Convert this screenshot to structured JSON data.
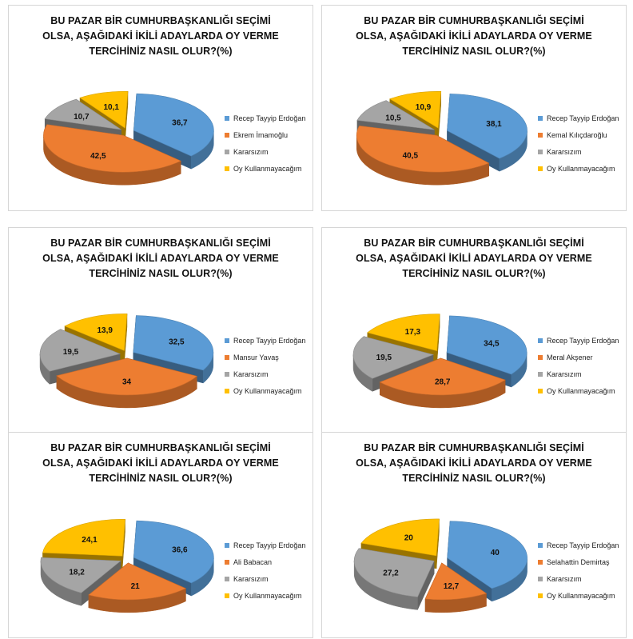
{
  "colors": {
    "erdogan": "#5b9bd5",
    "candidate": "#ed7d31",
    "undecided": "#a5a5a5",
    "novote": "#ffc000"
  },
  "chart_data": [
    {
      "type": "pie",
      "title": [
        "BU PAZAR BİR CUMHURBAŞKANLIĞI SEÇİMİ",
        "OLSA, AŞAĞIDAKİ İKİLİ ADAYLARDA OY VERME",
        "TERCİHİNİZ NASIL OLUR?(%)"
      ],
      "labels": [
        "Recep Tayyip Erdoğan",
        "Ekrem İmamoğlu",
        "Kararsızım",
        "Oy Kullanmayacağım"
      ],
      "values": [
        36.7,
        42.5,
        10.7,
        10.1
      ],
      "value_labels": [
        "36,7",
        "42,5",
        "10,7",
        "10,1"
      ],
      "legend": "right"
    },
    {
      "type": "pie",
      "title": [
        "BU PAZAR BİR CUMHURBAŞKANLIĞI SEÇİMİ",
        "OLSA, AŞAĞIDAKİ İKİLİ ADAYLARDA OY VERME",
        "TERCİHİNİZ NASIL OLUR?(%)"
      ],
      "labels": [
        "Recep Tayyip Erdoğan",
        "Kemal Kılıçdaroğlu",
        "Kararsızım",
        "Oy Kullanmayacağım"
      ],
      "values": [
        38.1,
        40.5,
        10.5,
        10.9
      ],
      "value_labels": [
        "38,1",
        "40,5",
        "10,5",
        "10,9"
      ],
      "legend": "right"
    },
    {
      "type": "pie",
      "title": [
        "BU PAZAR BİR CUMHURBAŞKANLIĞI SEÇİMİ",
        "OLSA, AŞAĞIDAKİ İKİLİ ADAYLARDA OY VERME",
        "TERCİHİNİZ NASIL OLUR?(%)"
      ],
      "labels": [
        "Recep Tayyip Erdoğan",
        "Mansur Yavaş",
        "Kararsızım",
        "Oy Kullanmayacağım"
      ],
      "values": [
        32.5,
        34,
        19.5,
        13.9
      ],
      "value_labels": [
        "32,5",
        "34",
        "19,5",
        "13,9"
      ],
      "legend": "right"
    },
    {
      "type": "pie",
      "title": [
        "BU PAZAR BİR CUMHURBAŞKANLIĞI SEÇİMİ",
        "OLSA, AŞAĞIDAKİ İKİLİ ADAYLARDA OY VERME",
        "TERCİHİNİZ NASIL OLUR?(%)"
      ],
      "labels": [
        "Recep Tayyip Erdoğan",
        "Meral Akşener",
        "Kararsızım",
        "Oy Kullanmayacağım"
      ],
      "values": [
        34.5,
        28.7,
        19.5,
        17.3
      ],
      "value_labels": [
        "34,5",
        "28,7",
        "19,5",
        "17,3"
      ],
      "legend": "right"
    },
    {
      "type": "pie",
      "title": [
        "BU PAZAR BİR CUMHURBAŞKANLIĞI SEÇİMİ",
        "OLSA, AŞAĞIDAKİ İKİLİ ADAYLARDA OY VERME",
        "TERCİHİNİZ NASIL OLUR?(%)"
      ],
      "labels": [
        "Recep Tayyip Erdoğan",
        "Ali Babacan",
        "Kararsızım",
        "Oy Kullanmayacağım"
      ],
      "values": [
        36.6,
        21,
        18.2,
        24.1
      ],
      "value_labels": [
        "36,6",
        "21",
        "18,2",
        "24,1"
      ],
      "legend": "right"
    },
    {
      "type": "pie",
      "title": [
        "BU PAZAR BİR CUMHURBAŞKANLIĞI SEÇİMİ",
        "OLSA, AŞAĞIDAKİ İKİLİ ADAYLARDA OY VERME",
        "TERCİHİNİZ NASIL OLUR?(%)"
      ],
      "labels": [
        "Recep Tayyip Erdoğan",
        "Selahattin Demirtaş",
        "Kararsızım",
        "Oy Kullanmayacağım"
      ],
      "values": [
        40,
        12.7,
        27.2,
        20
      ],
      "value_labels": [
        "40",
        "12,7",
        "27,2",
        "20"
      ],
      "legend": "right"
    }
  ]
}
